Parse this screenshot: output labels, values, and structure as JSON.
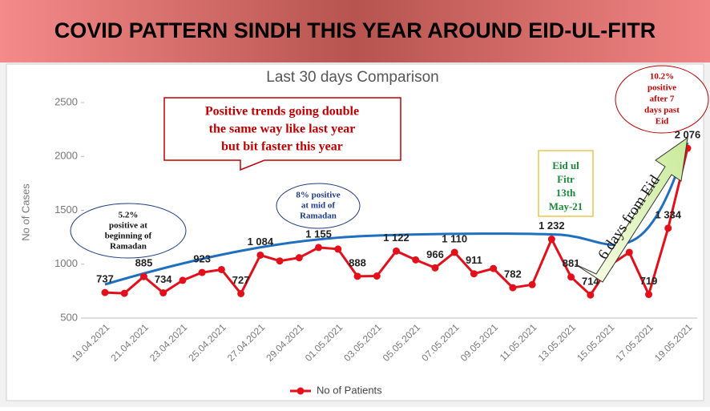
{
  "header": {
    "title": "COVID PATTERN SINDH THIS YEAR AROUND EID-UL-FITR"
  },
  "chart_data": {
    "type": "line",
    "title": "Last 30 days Comparison",
    "y_label": "No of Cases",
    "categories": [
      "19.04.2021",
      null,
      "21.04.2021",
      null,
      "23.04.2021",
      null,
      "25.04.2021",
      null,
      "27.04.2021",
      null,
      "29.04.2021",
      null,
      "01.05.2021",
      null,
      "03.05.2021",
      null,
      "05.05.2021",
      null,
      "07.05.2021",
      null,
      "09.05.2021",
      null,
      "11.05.2021",
      null,
      "13.05.2021",
      null,
      "15.05.2021",
      null,
      "17.05.2021",
      null,
      "19.05.2021"
    ],
    "series": [
      {
        "name": "No of Patients",
        "color": "#e3101b",
        "values": [
          737,
          730,
          885,
          734,
          850,
          923,
          950,
          727,
          1084,
          1030,
          1060,
          1155,
          1140,
          888,
          890,
          1122,
          1040,
          966,
          1110,
          911,
          960,
          782,
          810,
          1232,
          881,
          714,
          990,
          1110,
          719,
          1334,
          2076
        ],
        "value_labels": [
          "737",
          null,
          "885",
          "734",
          null,
          "923",
          null,
          "727",
          "1 084",
          null,
          null,
          "1 155",
          null,
          "888",
          null,
          "1 122",
          null,
          "966",
          "1 110",
          "911",
          null,
          "782",
          null,
          "1 232",
          "881",
          "714",
          null,
          null,
          "719",
          "1 334",
          "2 076"
        ]
      }
    ],
    "ylim": [
      500,
      2500
    ],
    "yticks": [
      500,
      1000,
      1500,
      2000,
      2500
    ],
    "grid": false,
    "legend": "bottom",
    "annotations": [
      [
        "Positive trends going double",
        "the same way like last year",
        "but bit faster this year"
      ],
      [
        "5.2%",
        "positive at",
        "beginning of",
        "Ramadan"
      ],
      [
        "8% positive",
        "at mid of",
        "Ramadan"
      ],
      [
        "10.2%",
        "positive",
        "after 7",
        "days past",
        "Eid"
      ],
      [
        "Eid ul",
        "Fitr",
        "13th",
        "May-21"
      ],
      [
        "6 days from Eid"
      ]
    ]
  }
}
